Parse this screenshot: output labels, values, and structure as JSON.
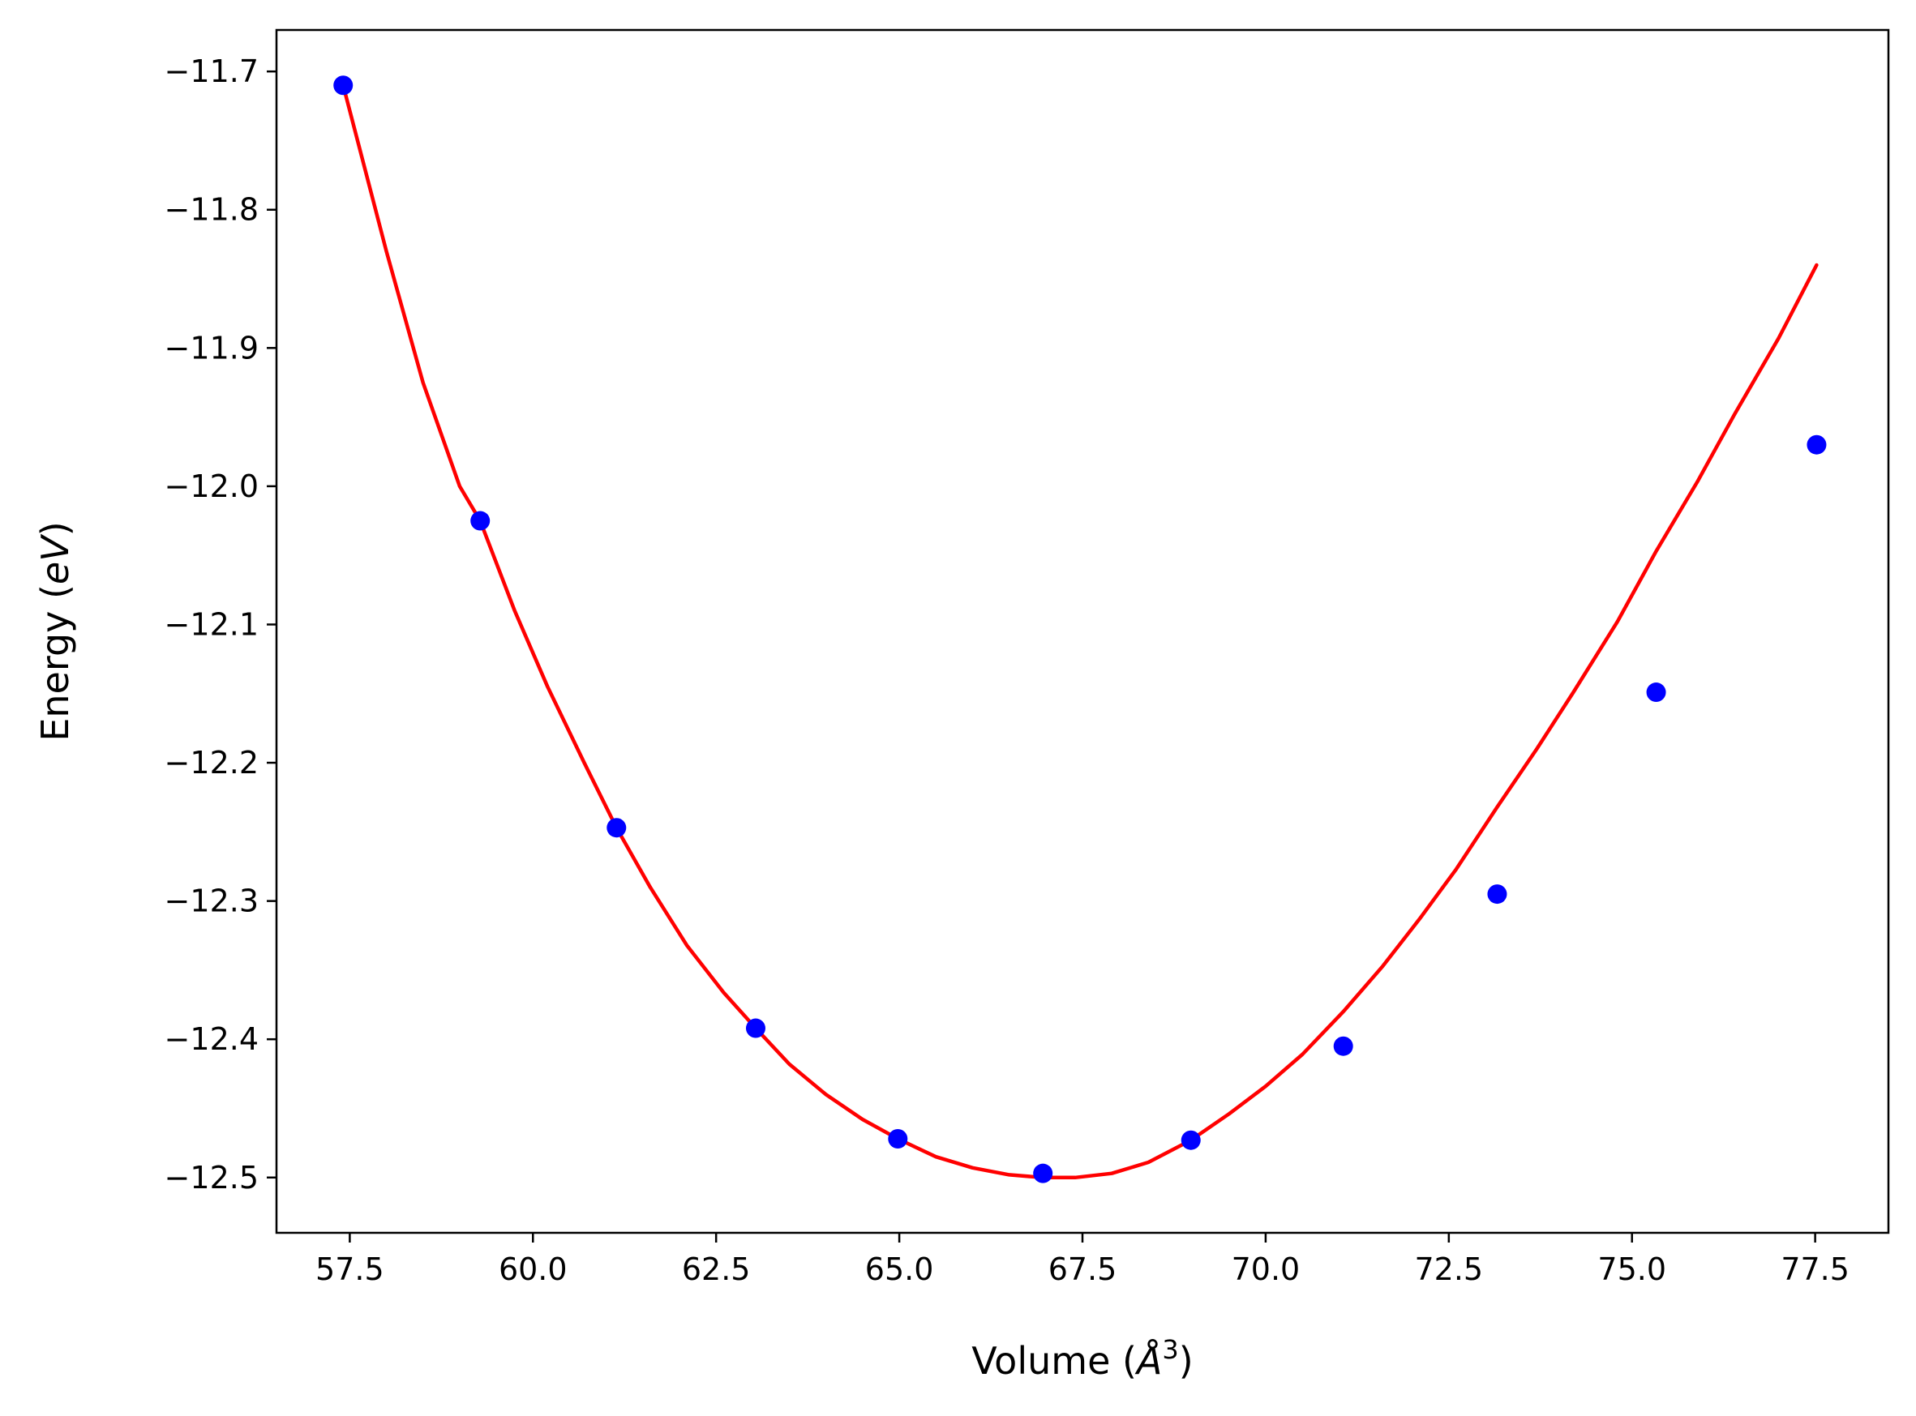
{
  "chart_data": {
    "type": "line",
    "title": "",
    "xlabel": {
      "pre": "Volume (",
      "italic": "Å",
      "sup": "3",
      "post": ")"
    },
    "ylabel": {
      "pre": "Energy (",
      "italic": "eV",
      "post": ")"
    },
    "xlim": [
      56.5,
      78.5
    ],
    "ylim": [
      -12.54,
      -11.67
    ],
    "x_ticks": [
      57.5,
      60.0,
      62.5,
      65.0,
      67.5,
      70.0,
      72.5,
      75.0,
      77.5
    ],
    "x_tick_labels": [
      "57.5",
      "60.0",
      "62.5",
      "65.0",
      "67.5",
      "70.0",
      "72.5",
      "75.0",
      "77.5"
    ],
    "y_ticks": [
      -11.7,
      -11.8,
      -11.9,
      -12.0,
      -12.1,
      -12.2,
      -12.3,
      -12.4,
      -12.5
    ],
    "y_tick_labels": [
      "−11.7",
      "−11.8",
      "−11.9",
      "−12.0",
      "−12.1",
      "−12.2",
      "−12.3",
      "−12.4",
      "−12.5"
    ],
    "grid": false,
    "legend": null,
    "series": [
      {
        "kind": "scatter",
        "color": "#0000ff",
        "x": [
          57.41,
          59.28,
          61.14,
          63.04,
          64.98,
          66.96,
          68.98,
          71.06,
          73.16,
          75.33,
          77.52
        ],
        "y": [
          -11.71,
          -12.025,
          -12.247,
          -12.392,
          -12.472,
          -12.497,
          -12.473,
          -12.405,
          -12.295,
          -12.149,
          -11.97
        ]
      },
      {
        "kind": "line",
        "color": "#ff0000",
        "x": [
          57.41,
          58.0,
          58.5,
          59.0,
          59.28,
          59.75,
          60.2,
          60.7,
          61.14,
          61.6,
          62.1,
          62.6,
          63.04,
          63.5,
          64.0,
          64.5,
          64.98,
          65.5,
          66.0,
          66.5,
          66.96,
          67.4,
          67.9,
          68.4,
          68.98,
          69.5,
          70.0,
          70.5,
          71.06,
          71.6,
          72.1,
          72.6,
          73.16,
          73.7,
          74.2,
          74.8,
          75.33,
          75.9,
          76.4,
          77.0,
          77.52
        ],
        "y": [
          -11.71,
          -11.83,
          -11.925,
          -12.0,
          -12.025,
          -12.09,
          -12.145,
          -12.2,
          -12.247,
          -12.29,
          -12.332,
          -12.366,
          -12.392,
          -12.418,
          -12.44,
          -12.458,
          -12.472,
          -12.485,
          -12.493,
          -12.498,
          -12.5,
          -12.5,
          -12.497,
          -12.489,
          -12.473,
          -12.454,
          -12.434,
          -12.411,
          -12.38,
          -12.347,
          -12.313,
          -12.277,
          -12.232,
          -12.19,
          -12.149,
          -12.098,
          -12.047,
          -11.996,
          -11.948,
          -11.893,
          -11.84
        ]
      }
    ]
  }
}
